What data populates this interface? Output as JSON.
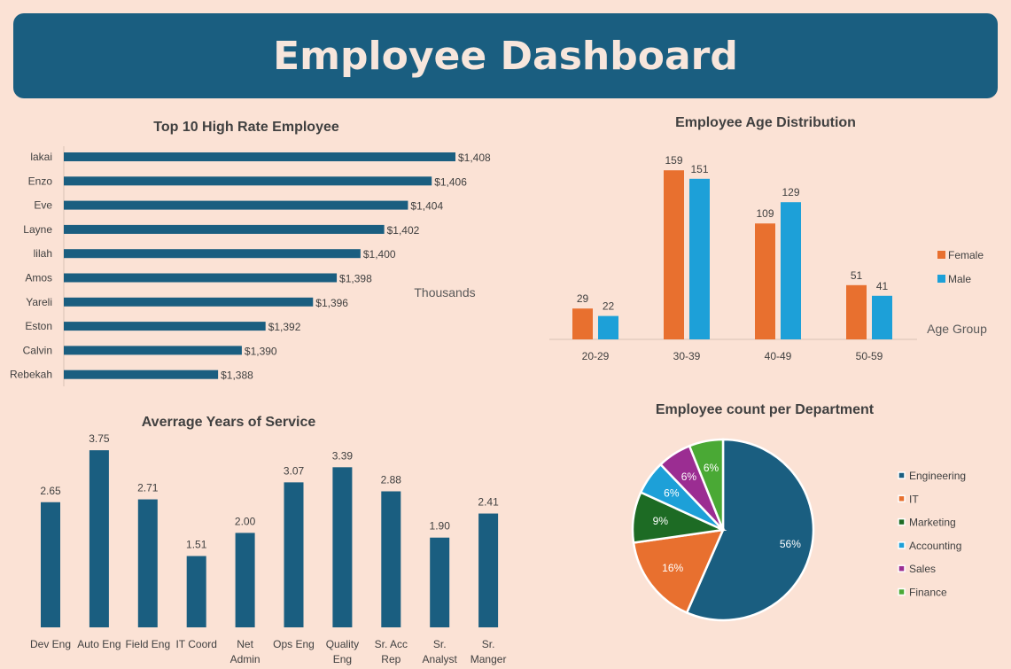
{
  "header": {
    "title": "Employee Dashboard"
  },
  "colors": {
    "primary": "#1a5e80",
    "female": "#e8702f",
    "male": "#1da0d8"
  },
  "chart_data": [
    {
      "type": "bar",
      "orientation": "horizontal",
      "title": "Top 10 High Rate Employee",
      "unit_label": "Thousands",
      "categories": [
        "lakai",
        "Enzo",
        "Eve",
        "Layne",
        "lilah",
        "Amos",
        "Yareli",
        "Eston",
        "Calvin",
        "Rebekah"
      ],
      "values": [
        1408,
        1406,
        1404,
        1402,
        1400,
        1398,
        1396,
        1392,
        1390,
        1388
      ],
      "labels": [
        "$1,408",
        "$1,406",
        "$1,404",
        "$1,402",
        "$1,400",
        "$1,398",
        "$1,396",
        "$1,392",
        "$1,390",
        "$1,388"
      ],
      "xlim": [
        1375,
        1410
      ]
    },
    {
      "type": "bar",
      "title": "Employee Age Distribution",
      "xlabel": "Age Group",
      "categories": [
        "20-29",
        "30-39",
        "40-49",
        "50-59"
      ],
      "series": [
        {
          "name": "Female",
          "values": [
            29,
            159,
            109,
            51
          ],
          "color": "#e8702f"
        },
        {
          "name": "Male",
          "values": [
            22,
            151,
            129,
            41
          ],
          "color": "#1da0d8"
        }
      ],
      "ylim": [
        0,
        160
      ],
      "legend": "right"
    },
    {
      "type": "bar",
      "title": "Averrage Years of Service",
      "categories": [
        "Dev Eng",
        "Auto Eng",
        "Field Eng",
        "IT Coord",
        "Net Admin",
        "Ops Eng",
        "Quality Eng",
        "Sr. Acc Rep",
        "Sr. Analyst",
        "Sr. Manger"
      ],
      "values": [
        2.65,
        3.75,
        2.71,
        1.51,
        2.0,
        3.07,
        3.39,
        2.88,
        1.9,
        2.41
      ],
      "labels": [
        "2.65",
        "3.75",
        "2.71",
        "1.51",
        "2.00",
        "3.07",
        "3.39",
        "2.88",
        "1.90",
        "2.41"
      ],
      "ylim": [
        0,
        3.75
      ]
    },
    {
      "type": "pie",
      "title": "Employee count per Department",
      "categories": [
        "Engineering",
        "IT",
        "Marketing",
        "Accounting",
        "Sales",
        "Finance"
      ],
      "values": [
        56,
        16,
        9,
        6,
        6,
        6
      ],
      "labels": [
        "56%",
        "16%",
        "9%",
        "6%",
        "6%",
        "6%"
      ],
      "colors": [
        "#1a5e80",
        "#e8702f",
        "#1d6b24",
        "#1da0d8",
        "#9b2d92",
        "#4aa935"
      ],
      "legend": "right"
    }
  ]
}
